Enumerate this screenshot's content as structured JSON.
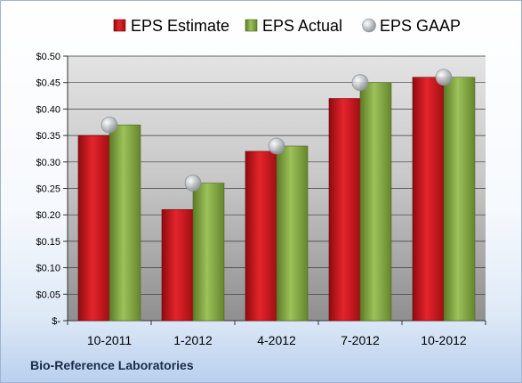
{
  "company": "Bio-Reference Laboratories",
  "chart_data": {
    "type": "bar",
    "title": "",
    "xlabel": "",
    "ylabel": "",
    "categories": [
      "10-2011",
      "1-2012",
      "4-2012",
      "7-2012",
      "10-2012"
    ],
    "series": [
      {
        "name": "EPS Estimate",
        "kind": "bar",
        "color": "#c8131b",
        "values": [
          0.35,
          0.21,
          0.32,
          0.42,
          0.46
        ]
      },
      {
        "name": "EPS Actual",
        "kind": "bar",
        "color": "#7fa23c",
        "values": [
          0.37,
          0.26,
          0.33,
          0.45,
          0.46
        ]
      },
      {
        "name": "EPS GAAP",
        "kind": "marker",
        "color": "#b8bdc4",
        "values": [
          0.37,
          0.26,
          0.33,
          0.45,
          0.46
        ]
      }
    ],
    "ylim": [
      0,
      0.5
    ],
    "yticks": [
      0,
      0.05,
      0.1,
      0.15,
      0.2,
      0.25,
      0.3,
      0.35,
      0.4,
      0.45,
      0.5
    ],
    "ytick_labels": [
      "$-",
      "$0.05",
      "$0.10",
      "$0.15",
      "$0.20",
      "$0.25",
      "$0.30",
      "$0.35",
      "$0.40",
      "$0.45",
      "$0.50"
    ],
    "grid": true,
    "legend": "top"
  }
}
